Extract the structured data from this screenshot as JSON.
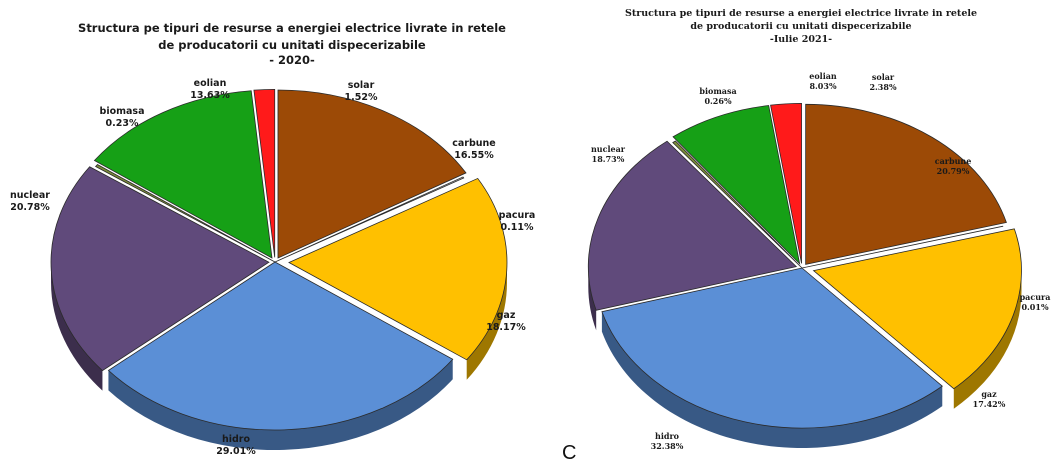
{
  "stray_letter": "C",
  "chart_data": [
    {
      "type": "pie",
      "title": [
        "Structura pe tipuri de resurse a energiei electrice livrate in retele",
        "de producatorii cu unitati dispecerizabile",
        "- 2020-"
      ],
      "slices": [
        {
          "name": "carbune",
          "value": 16.55,
          "label": "16.55%",
          "color": "#9c4a06"
        },
        {
          "name": "pacura",
          "value": 0.11,
          "label": "0.11%",
          "color": "#b7b7b7"
        },
        {
          "name": "gaz",
          "value": 18.17,
          "label": "18.17%",
          "color": "#ffc000"
        },
        {
          "name": "hidro",
          "value": 29.01,
          "label": "29.01%",
          "color": "#5b8fd6"
        },
        {
          "name": "nuclear",
          "value": 20.78,
          "label": "20.78%",
          "color": "#604a7b"
        },
        {
          "name": "biomasa",
          "value": 0.23,
          "label": "0.23%",
          "color": "#7a8a3a"
        },
        {
          "name": "eolian",
          "value": 13.63,
          "label": "13.63%",
          "color": "#16a016"
        },
        {
          "name": "solar",
          "value": 1.52,
          "label": "1.52%",
          "color": "#ff1a1a"
        }
      ]
    },
    {
      "type": "pie",
      "title": [
        "Structura pe tipuri de resurse a energiei electrice livrate in retele",
        "de producatorii cu unitati dispecerizabile",
        "-Iulie 2021-"
      ],
      "slices": [
        {
          "name": "carbune",
          "value": 20.79,
          "label": "20.79%",
          "color": "#9c4a06"
        },
        {
          "name": "pacura",
          "value": 0.01,
          "label": "0.01%",
          "color": "#b7b7b7"
        },
        {
          "name": "gaz",
          "value": 17.42,
          "label": "17.42%",
          "color": "#ffc000"
        },
        {
          "name": "hidro",
          "value": 32.38,
          "label": "32.38%",
          "color": "#5b8fd6"
        },
        {
          "name": "nuclear",
          "value": 18.73,
          "label": "18.73%",
          "color": "#604a7b"
        },
        {
          "name": "biomasa",
          "value": 0.26,
          "label": "0.26%",
          "color": "#7a8a3a"
        },
        {
          "name": "eolian",
          "value": 8.03,
          "label": "8.03%",
          "color": "#16a016"
        },
        {
          "name": "solar",
          "value": 2.38,
          "label": "2.38%",
          "color": "#ff1a1a"
        }
      ]
    }
  ]
}
